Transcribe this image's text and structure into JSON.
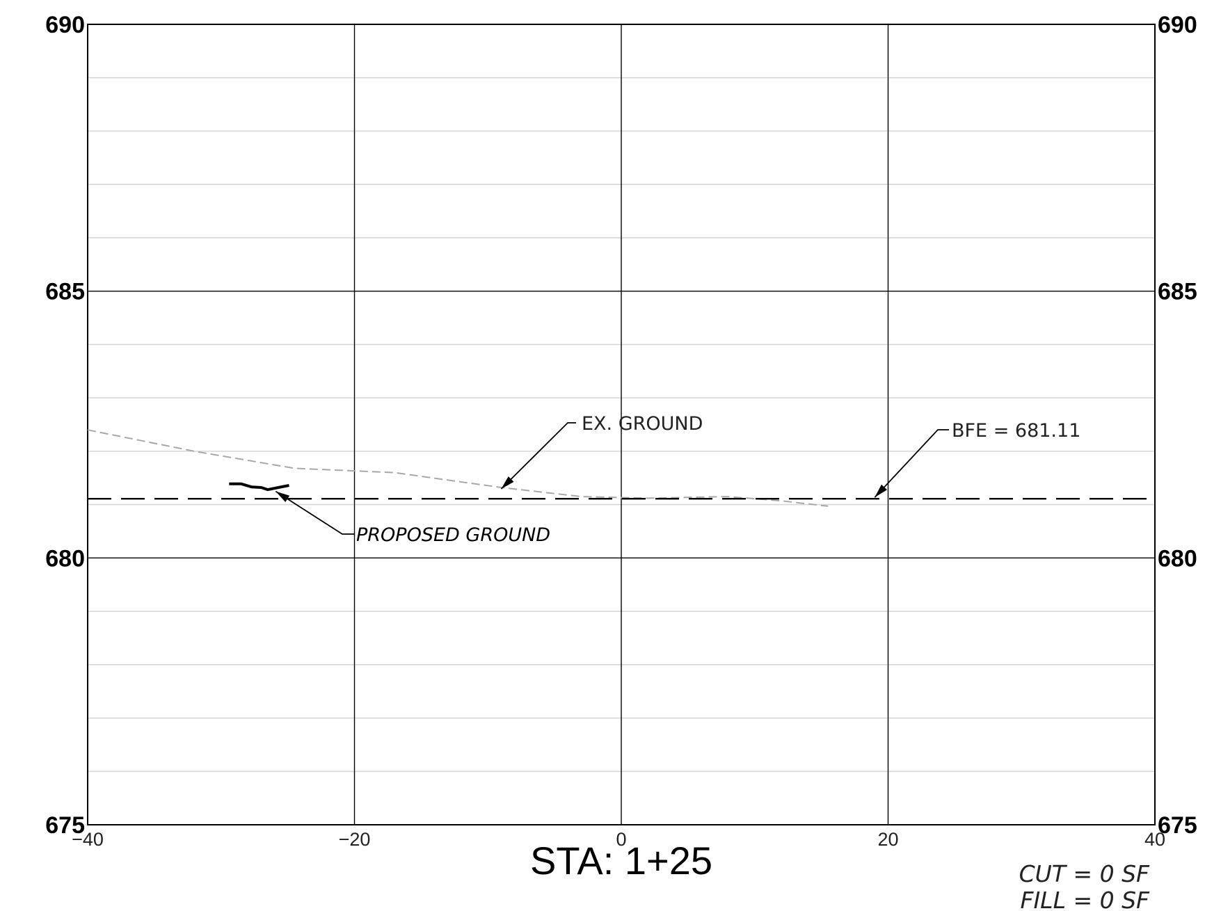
{
  "chart_data": {
    "type": "line",
    "xlim": [
      -40,
      40
    ],
    "ylim": [
      675,
      690
    ],
    "x_ticks": [
      "−40",
      "−20",
      "0",
      "20",
      "40"
    ],
    "x_tick_values": [
      -40,
      -20,
      0,
      20,
      40
    ],
    "y_ticks": [
      "675",
      "680",
      "685",
      "690"
    ],
    "y_tick_values": [
      675,
      680,
      685,
      690
    ],
    "y_minor_step": 1,
    "grid": true,
    "series": [
      {
        "name": "EX. GROUND",
        "style": "dashed-gray",
        "x": [
          -40,
          -32,
          -24.5,
          -17,
          -9,
          -3,
          2,
          8,
          12,
          15.5
        ],
        "y": [
          682.4,
          682.0,
          681.68,
          681.6,
          681.32,
          681.15,
          681.12,
          681.15,
          681.07,
          680.97
        ]
      },
      {
        "name": "PROPOSED GROUND",
        "style": "solid-black-thick",
        "x": [
          -29.4,
          -28.5,
          -27.7,
          -27,
          -26.5,
          -25.7,
          -24.9
        ],
        "y": [
          681.39,
          681.39,
          681.33,
          681.32,
          681.28,
          681.32,
          681.36
        ]
      },
      {
        "name": "BFE",
        "style": "dashed-black",
        "x": [
          -40,
          40
        ],
        "y": [
          681.11,
          681.11
        ]
      }
    ],
    "annotations": {
      "ex_ground": "EX. GROUND",
      "bfe": "BFE = 681.11",
      "proposed_ground": "PROPOSED GROUND"
    },
    "station": "STA: 1+25",
    "cut": "CUT = 0 SF",
    "fill": "FILL = 0 SF"
  },
  "colors": {
    "major_grid": "#000000",
    "minor_grid": "#d6d6d6",
    "ex_ground": "#a8a8a8",
    "proposed": "#000000",
    "bfe": "#000000"
  }
}
